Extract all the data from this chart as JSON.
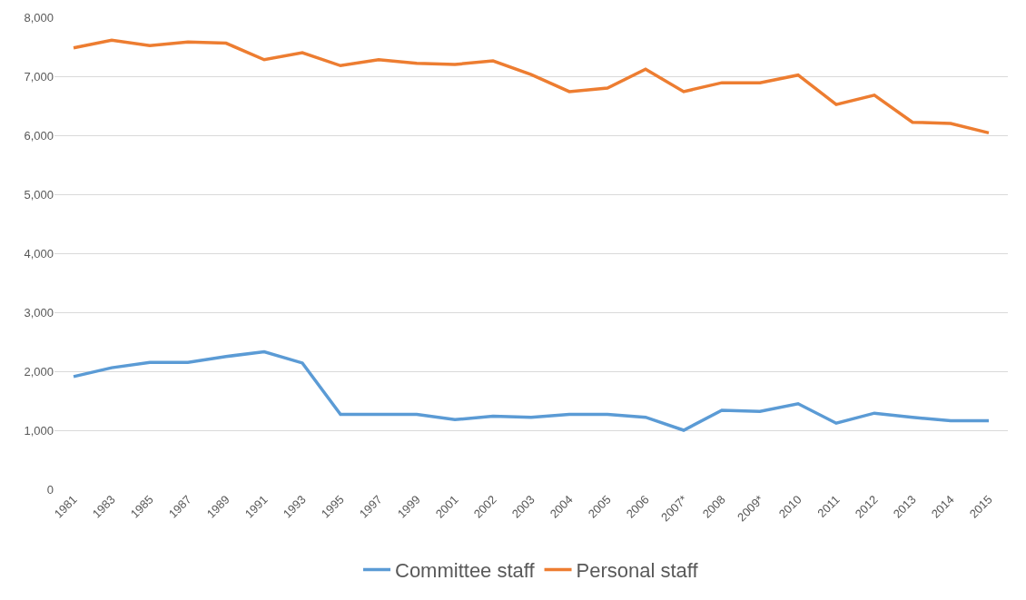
{
  "chart_data": {
    "type": "line",
    "categories": [
      "1981",
      "1983",
      "1985",
      "1987",
      "1989",
      "1991",
      "1993",
      "1995",
      "1997",
      "1999",
      "2001",
      "2002",
      "2003",
      "2004",
      "2005",
      "2006",
      "2007*",
      "2008",
      "2009*",
      "2010",
      "2011",
      "2012",
      "2013",
      "2014",
      "2015"
    ],
    "series": [
      {
        "name": "Committee staff",
        "color": "#5b9bd5",
        "values": [
          1910,
          2060,
          2150,
          2150,
          2250,
          2330,
          2140,
          1270,
          1270,
          1270,
          1180,
          1240,
          1220,
          1270,
          1270,
          1220,
          1000,
          1340,
          1320,
          1450,
          1120,
          1290,
          1220,
          1160,
          1160
        ]
      },
      {
        "name": "Personal staff",
        "color": "#ed7d31",
        "values": [
          7480,
          7610,
          7520,
          7580,
          7560,
          7280,
          7400,
          7180,
          7280,
          7220,
          7200,
          7260,
          7030,
          6740,
          6800,
          7120,
          6740,
          6890,
          6890,
          7020,
          6520,
          6680,
          6220,
          6200,
          6040
        ]
      }
    ],
    "ylim": [
      0,
      8000
    ],
    "yticks": [
      {
        "value": 0,
        "label": "0"
      },
      {
        "value": 1000,
        "label": "1,000"
      },
      {
        "value": 2000,
        "label": "2,000"
      },
      {
        "value": 3000,
        "label": "3,000"
      },
      {
        "value": 4000,
        "label": "4,000"
      },
      {
        "value": 5000,
        "label": "5,000"
      },
      {
        "value": 6000,
        "label": "6,000"
      },
      {
        "value": 7000,
        "label": "7,000"
      },
      {
        "value": 8000,
        "label": "8,000"
      }
    ],
    "grid": "y",
    "legend": "bottom",
    "marker": "none",
    "line_style": "solid"
  }
}
